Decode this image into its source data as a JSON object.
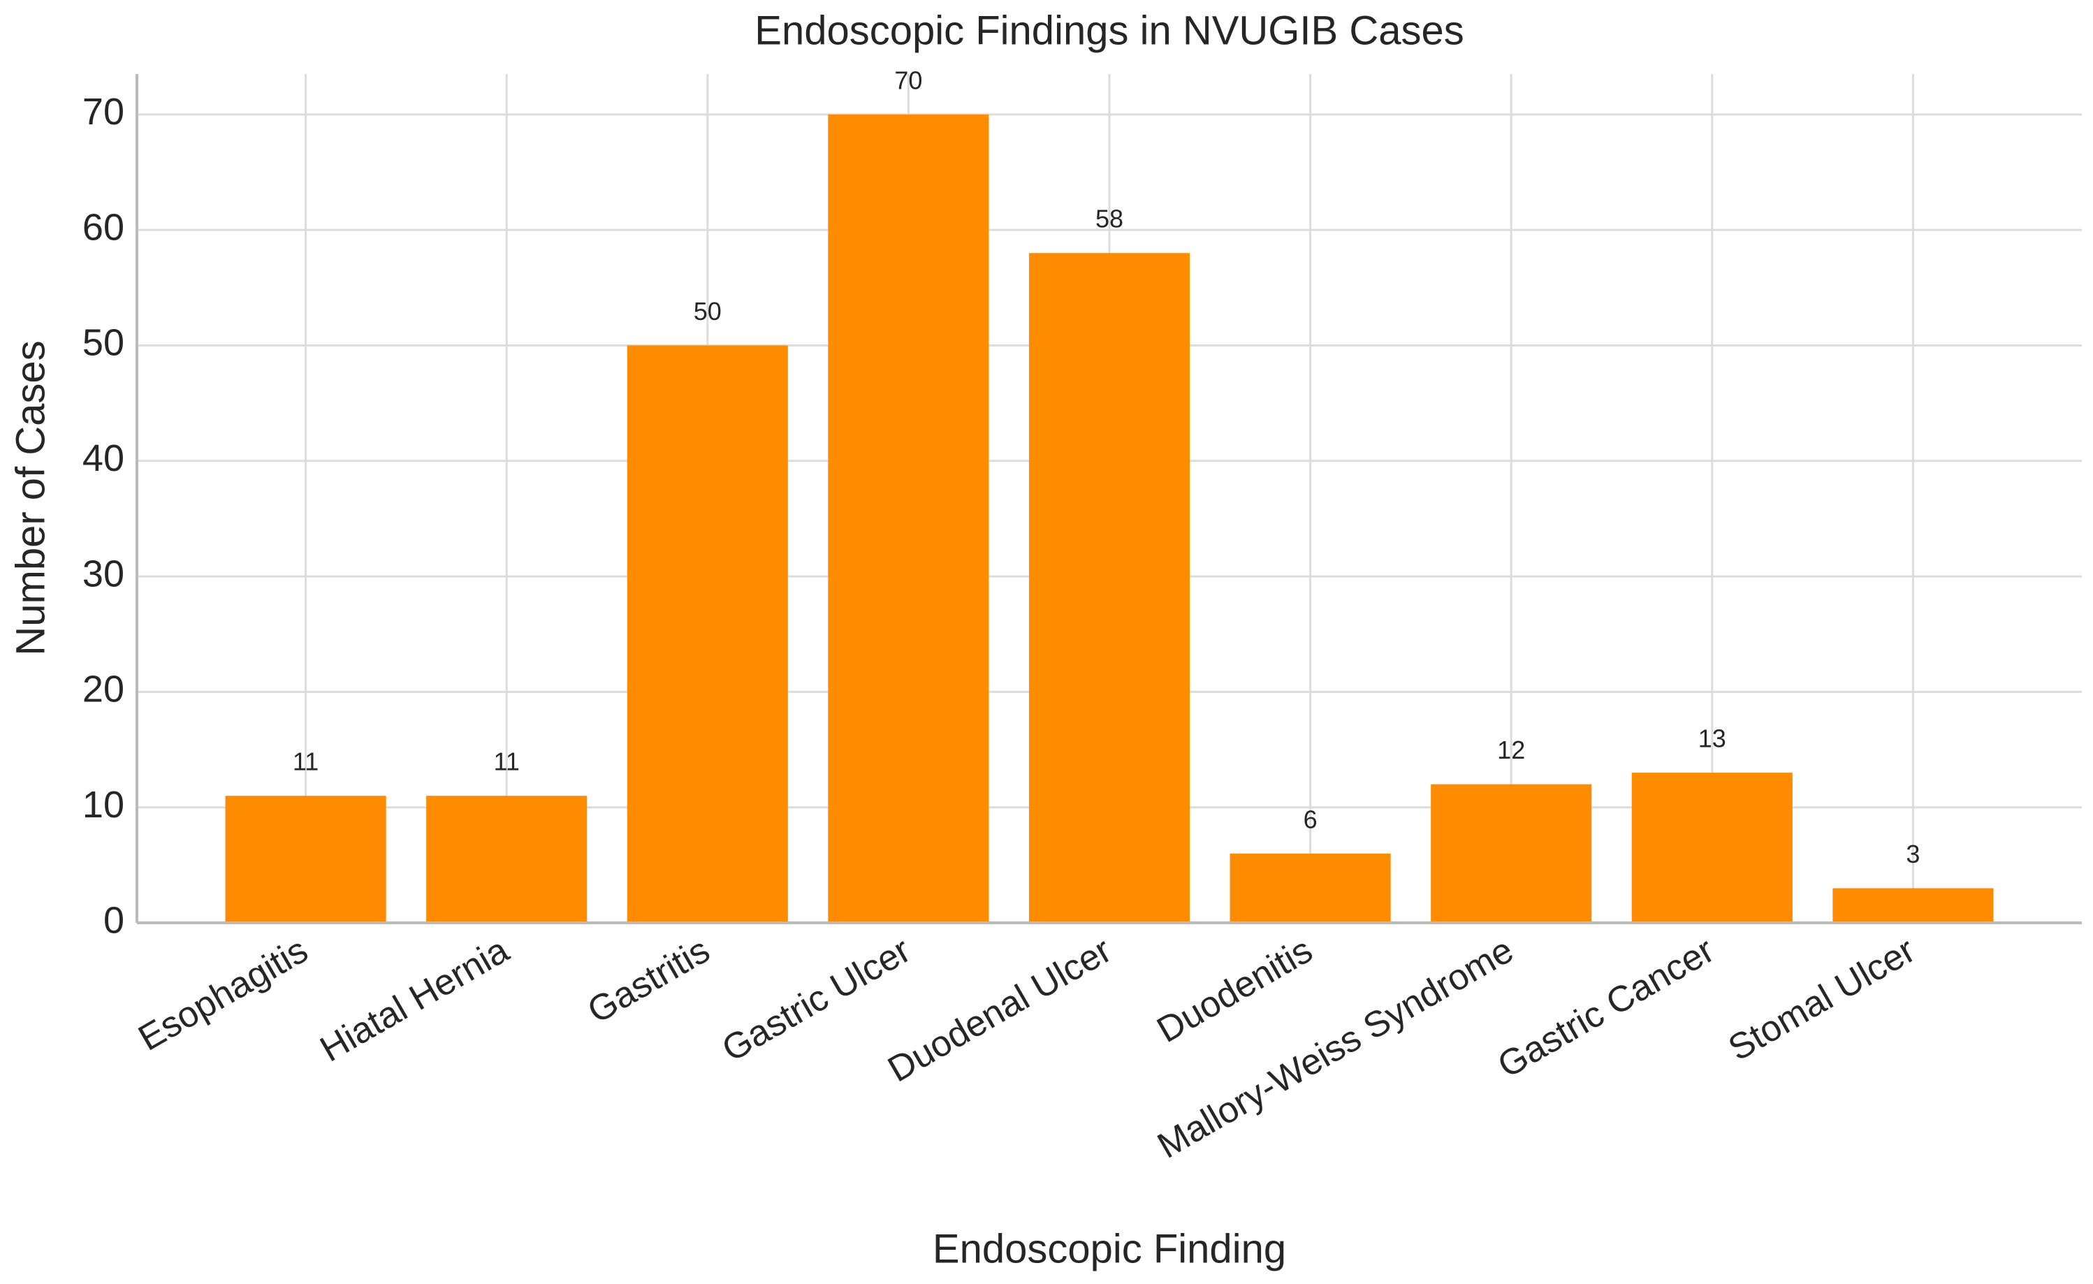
{
  "chart_data": {
    "type": "bar",
    "title": "Endoscopic Findings in NVUGIB Cases",
    "x_label": "Endoscopic Finding",
    "y_label": "Number of Cases",
    "categories": [
      "Esophagitis",
      "Hiatal Hernia",
      "Gastritis",
      "Gastric Ulcer",
      "Duodenal Ulcer",
      "Duodenitis",
      "Mallory-Weiss Syndrome",
      "Gastric Cancer",
      "Stomal Ulcer"
    ],
    "values": [
      11,
      11,
      50,
      70,
      58,
      6,
      12,
      13,
      3
    ],
    "color": "#ff8c00",
    "ylim": [
      0,
      73.5
    ],
    "yticks": [
      0,
      10,
      20,
      30,
      40,
      50,
      60,
      70
    ],
    "grid": true
  }
}
